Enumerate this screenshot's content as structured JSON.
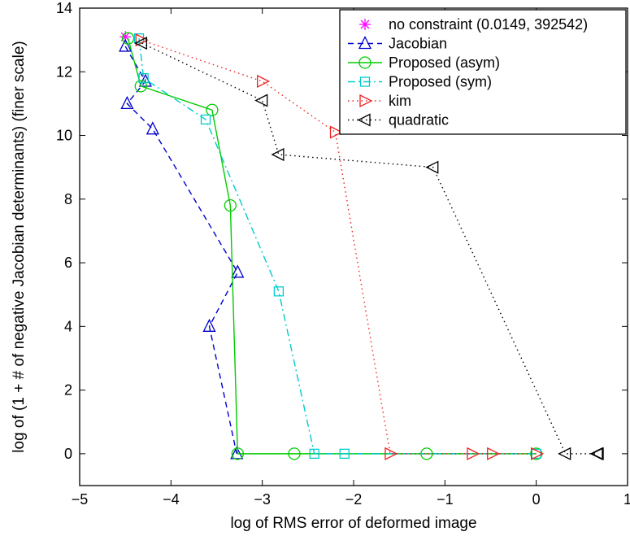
{
  "chart_data": {
    "type": "line",
    "xlabel": "log of RMS error of deformed image",
    "ylabel": "log of (1 + # of negative Jacobian determinants) (finer scale)",
    "xlim": [
      -5,
      1
    ],
    "ylim": [
      -1,
      14
    ],
    "xticks": [
      -5,
      -4,
      -3,
      -2,
      -1,
      0,
      1
    ],
    "yticks": [
      0,
      2,
      4,
      6,
      8,
      10,
      12,
      14
    ],
    "xtick_labels": [
      "−5",
      "−4",
      "−3",
      "−2",
      "−1",
      "0",
      "1"
    ],
    "ytick_labels": [
      "0",
      "2",
      "4",
      "6",
      "8",
      "10",
      "12",
      "14"
    ],
    "grid": false,
    "legend_position": "top-right",
    "series": [
      {
        "name": "no constraint (0.0149, 392542)",
        "color": "#ff00ff",
        "marker": "star",
        "dash": "none",
        "x": [
          -4.5
        ],
        "y": [
          13.1
        ]
      },
      {
        "name": "Jacobian",
        "color": "#0000cc",
        "marker": "triangle-up",
        "dash": "dashed",
        "x": [
          -4.5,
          -4.28,
          -4.48,
          -4.2,
          -3.27,
          -3.58,
          -3.28
        ],
        "y": [
          12.8,
          11.7,
          11.0,
          10.2,
          5.7,
          4.0,
          0.0
        ]
      },
      {
        "name": "Proposed (asym)",
        "color": "#00cc00",
        "marker": "circle",
        "dash": "solid",
        "x": [
          -4.47,
          -4.33,
          -3.55,
          -3.35,
          -3.27,
          -2.65,
          -1.2,
          0.0
        ],
        "y": [
          13.05,
          11.55,
          10.8,
          7.8,
          0.0,
          0.0,
          0.0,
          0.0
        ]
      },
      {
        "name": "Proposed (sym)",
        "color": "#00cccc",
        "marker": "square",
        "dash": "dashdot",
        "x": [
          -4.35,
          -4.3,
          -3.62,
          -2.82,
          -2.43,
          -2.1,
          0.0
        ],
        "y": [
          13.05,
          11.8,
          10.5,
          5.1,
          0.0,
          0.0,
          0.0
        ]
      },
      {
        "name": "kim",
        "color": "#ee2222",
        "marker": "triangle-right",
        "dash": "dotted",
        "x": [
          -4.33,
          -3.0,
          -2.2,
          -1.6,
          -0.7,
          -0.48,
          0.0
        ],
        "y": [
          13.0,
          11.7,
          10.1,
          0.0,
          0.0,
          0.0,
          0.0
        ]
      },
      {
        "name": "quadratic",
        "color": "#000000",
        "marker": "triangle-left",
        "dash": "dotted",
        "x": [
          -4.32,
          -3.0,
          -2.82,
          -1.13,
          0.32,
          0.67,
          0.68
        ],
        "y": [
          12.9,
          11.1,
          9.4,
          9.0,
          0.0,
          0.0,
          0.0
        ]
      }
    ]
  }
}
